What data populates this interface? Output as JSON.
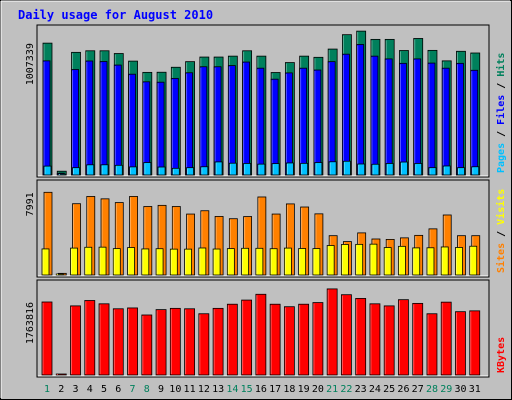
{
  "chart_data": [
    {
      "type": "bar",
      "title": "Daily usage for August 2010",
      "categories": [
        "1",
        "2",
        "3",
        "4",
        "5",
        "6",
        "7",
        "8",
        "9",
        "10",
        "11",
        "12",
        "13",
        "14",
        "15",
        "16",
        "17",
        "18",
        "19",
        "20",
        "21",
        "22",
        "23",
        "24",
        "25",
        "26",
        "27",
        "28",
        "29",
        "30",
        "31"
      ],
      "weekend_categories": [
        "1",
        "7",
        "8",
        "14",
        "15",
        "21",
        "22",
        "28",
        "29"
      ],
      "ylabel": "Hits / Files / Pages",
      "ytick_label": "1007339",
      "ylim": [
        0,
        1100000
      ],
      "series": [
        {
          "name": "Hits",
          "color": "#00805c",
          "values": [
            1007339,
            29000,
            937000,
            949000,
            949000,
            928000,
            870000,
            784000,
            785000,
            823000,
            866000,
            901000,
            901000,
            908000,
            949000,
            908000,
            783000,
            859000,
            908000,
            899000,
            962000,
            1072000,
            1099000,
            1036000,
            1036000,
            951000,
            1043000,
            952000,
            872000,
            945000,
            932000
          ]
        },
        {
          "name": "Files",
          "color": "#0000ff",
          "values": [
            872000,
            14000,
            806000,
            871000,
            867000,
            840000,
            770000,
            712000,
            709000,
            738000,
            781000,
            827000,
            827000,
            836000,
            863000,
            816000,
            732000,
            780000,
            816000,
            802000,
            866000,
            923000,
            997000,
            908000,
            887000,
            853000,
            887000,
            855000,
            816000,
            853000,
            800000
          ]
        },
        {
          "name": "Pages",
          "color": "#00c0ff",
          "values": [
            68000,
            5000,
            56000,
            78000,
            78000,
            74000,
            62000,
            95000,
            61000,
            51000,
            56000,
            63000,
            100000,
            90000,
            88000,
            83000,
            87000,
            92000,
            89000,
            95000,
            101000,
            105000,
            84000,
            82000,
            88000,
            99000,
            88000,
            56000,
            69000,
            56000,
            63000
          ]
        }
      ]
    },
    {
      "type": "bar",
      "categories": [
        "1",
        "2",
        "3",
        "4",
        "5",
        "6",
        "7",
        "8",
        "9",
        "10",
        "11",
        "12",
        "13",
        "14",
        "15",
        "16",
        "17",
        "18",
        "19",
        "20",
        "21",
        "22",
        "23",
        "24",
        "25",
        "26",
        "27",
        "28",
        "29",
        "30",
        "31"
      ],
      "ylabel": "Sites / Visits",
      "ytick_label": "7991",
      "ylim": [
        0,
        8600
      ],
      "series": [
        {
          "name": "Sites",
          "color": "#ff8000",
          "values": [
            7991,
            160,
            6890,
            7590,
            7360,
            7000,
            7590,
            6620,
            6730,
            6620,
            5890,
            6210,
            5660,
            5440,
            5650,
            7540,
            5890,
            6870,
            6570,
            5910,
            3800,
            3230,
            4070,
            3480,
            3440,
            3590,
            3830,
            4460,
            5800,
            3800,
            3800
          ]
        },
        {
          "name": "Visits",
          "color": "#ffff00",
          "values": [
            2520,
            70,
            2600,
            2680,
            2690,
            2550,
            2650,
            2520,
            2540,
            2500,
            2500,
            2610,
            2510,
            2550,
            2580,
            2580,
            2540,
            2600,
            2560,
            2550,
            2850,
            2950,
            2960,
            2980,
            2650,
            2770,
            2620,
            2630,
            2710,
            2660,
            2780
          ]
        }
      ]
    },
    {
      "type": "bar",
      "categories": [
        "1",
        "2",
        "3",
        "4",
        "5",
        "6",
        "7",
        "8",
        "9",
        "10",
        "11",
        "12",
        "13",
        "14",
        "15",
        "16",
        "17",
        "18",
        "19",
        "20",
        "21",
        "22",
        "23",
        "24",
        "25",
        "26",
        "27",
        "28",
        "29",
        "30",
        "31"
      ],
      "ylabel": "KBytes",
      "ytick_label": "1763816",
      "ylim": [
        0,
        2150000
      ],
      "series": [
        {
          "name": "KBytes",
          "color": "#ff0000",
          "values": [
            1763816,
            15000,
            1670000,
            1800000,
            1720000,
            1600000,
            1620000,
            1450000,
            1580000,
            1610000,
            1600000,
            1480000,
            1610000,
            1710000,
            1810000,
            1950000,
            1710000,
            1650000,
            1710000,
            1750000,
            2080000,
            1940000,
            1850000,
            1720000,
            1670000,
            1820000,
            1730000,
            1480000,
            1760000,
            1530000,
            1550000
          ]
        }
      ]
    }
  ],
  "colors": {
    "background": "#c0c0c0",
    "panel": "#c0c0c0",
    "title": "#0000ff",
    "weekday_label": "#000000",
    "weekend_label": "#00805c"
  }
}
